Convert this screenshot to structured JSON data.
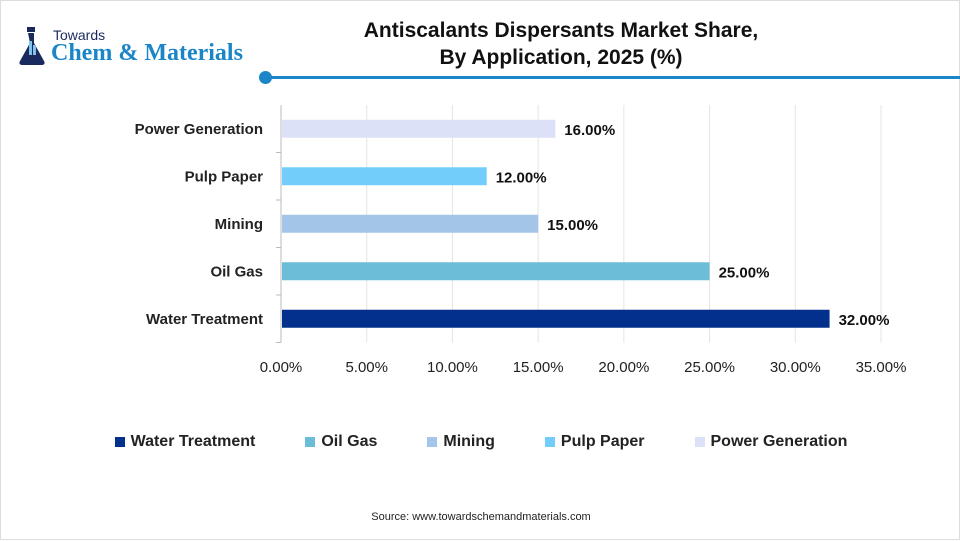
{
  "logo": {
    "line1": "Towards",
    "line2": "Chem & Materials"
  },
  "chart_data": {
    "type": "bar",
    "orientation": "horizontal",
    "title": "Antiscalants Dispersants Market Share, By Application, 2025 (%)",
    "title_lines": [
      "Antiscalants Dispersants Market Share,",
      "By Application, 2025 (%)"
    ],
    "categories": [
      "Power Generation",
      "Pulp Paper",
      "Mining",
      "Oil Gas",
      "Water Treatment"
    ],
    "values": [
      16,
      12,
      15,
      25,
      32
    ],
    "data_labels": [
      "16.00%",
      "12.00%",
      "15.00%",
      "25.00%",
      "32.00%"
    ],
    "colors": [
      "#dde1f7",
      "#73cdfb",
      "#a3c6e8",
      "#6bbdd8",
      "#02308c"
    ],
    "xlim": [
      0,
      35
    ],
    "x_ticks": [
      "0.00%",
      "5.00%",
      "10.00%",
      "15.00%",
      "20.00%",
      "25.00%",
      "30.00%",
      "35.00%"
    ],
    "grid": "vertical",
    "legend_position": "bottom",
    "legend": [
      {
        "label": "Water Treatment",
        "color": "#02308c"
      },
      {
        "label": "Oil Gas",
        "color": "#6bbdd8"
      },
      {
        "label": "Mining",
        "color": "#a3c6e8"
      },
      {
        "label": "Pulp Paper",
        "color": "#73cdfb"
      },
      {
        "label": "Power Generation",
        "color": "#dde1f7"
      }
    ]
  },
  "source": "Source: www.towardschemandmaterials.com"
}
